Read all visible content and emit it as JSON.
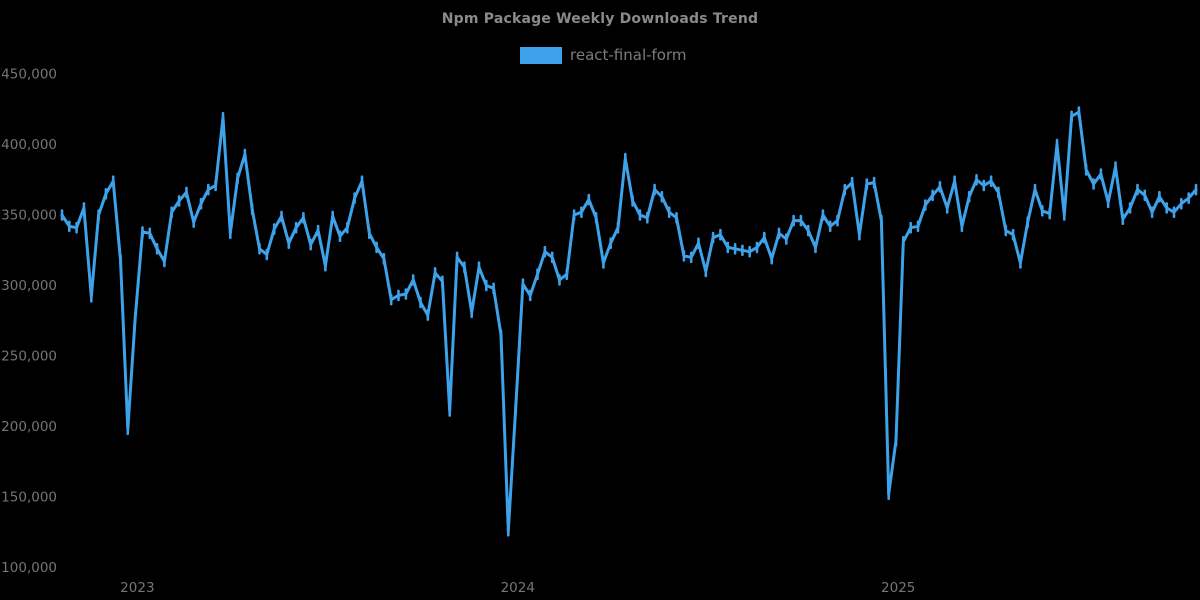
{
  "title": "Npm Package Weekly Downloads Trend",
  "legend": {
    "label": "react-final-form",
    "swatch_color": "#3da2ea"
  },
  "colors": {
    "background": "#000000",
    "line": "#3da2ea",
    "title_text": "#8a8a8a",
    "tick_text": "#757575"
  },
  "chart_data": {
    "type": "line",
    "title": "Npm Package Weekly Downloads Trend",
    "series_name": "react-final-form",
    "x_unit": "weeks",
    "grid": false,
    "legend_position": "top-center",
    "y_ticks": [
      100000,
      150000,
      200000,
      250000,
      300000,
      350000,
      400000,
      450000
    ],
    "ylim": [
      100000,
      450000
    ],
    "x_ticks": [
      {
        "label": "2023",
        "week_index": 10.3
      },
      {
        "label": "2024",
        "week_index": 62.3
      },
      {
        "label": "2025",
        "week_index": 114.3
      }
    ],
    "values": [
      350000,
      342000,
      341000,
      355000,
      292000,
      350000,
      365000,
      374000,
      318000,
      198000,
      277000,
      338000,
      337000,
      326000,
      317000,
      352000,
      360000,
      366000,
      345000,
      358000,
      368000,
      371000,
      419000,
      337000,
      376000,
      393000,
      354000,
      326000,
      322000,
      340000,
      349000,
      330000,
      341000,
      348000,
      329000,
      339000,
      314000,
      349000,
      335000,
      341000,
      362000,
      374000,
      337000,
      327000,
      319000,
      290000,
      293000,
      294000,
      304000,
      288000,
      279000,
      309000,
      303000,
      211000,
      320000,
      313000,
      281000,
      313000,
      300000,
      298000,
      265000,
      126000,
      212000,
      301000,
      293000,
      308000,
      324000,
      320000,
      304000,
      308000,
      350000,
      352000,
      361000,
      348000,
      316000,
      330000,
      341000,
      390000,
      360000,
      350000,
      348000,
      368000,
      363000,
      352000,
      348000,
      321000,
      320000,
      330000,
      310000,
      334000,
      336000,
      327000,
      326000,
      325000,
      324000,
      327000,
      334000,
      319000,
      337000,
      333000,
      346000,
      346000,
      339000,
      327000,
      350000,
      342000,
      346000,
      368000,
      373000,
      336000,
      372000,
      373000,
      346000,
      152000,
      190000,
      331000,
      341000,
      342000,
      357000,
      364000,
      370000,
      355000,
      374000,
      342000,
      363000,
      375000,
      371000,
      374000,
      366000,
      339000,
      336000,
      316000,
      345000,
      368000,
      353000,
      351000,
      400000,
      350000,
      420000,
      423000,
      382000,
      372000,
      379000,
      359000,
      384000,
      347000,
      355000,
      368000,
      364000,
      352000,
      363000,
      355000,
      352000,
      358000,
      362000,
      368000
    ]
  }
}
